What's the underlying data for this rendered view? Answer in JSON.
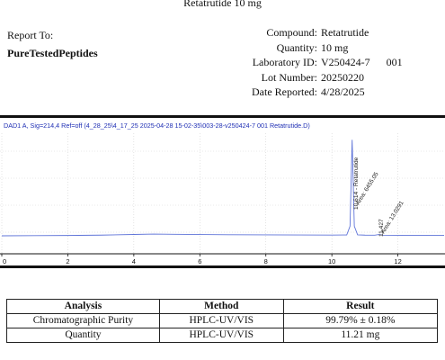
{
  "document": {
    "title": "Retatrutide 10 mg"
  },
  "report_to": {
    "label": "Report To:",
    "company": "PureTestedPeptides"
  },
  "info": [
    {
      "label": "Compound:",
      "value": "Retatrutide",
      "extra": ""
    },
    {
      "label": "Quantity:",
      "value": "10 mg",
      "extra": ""
    },
    {
      "label": "Laboratory ID:",
      "value": "V250424-7",
      "extra": "001"
    },
    {
      "label": "Lot Number:",
      "value": "20250220",
      "extra": ""
    },
    {
      "label": "Date Reported:",
      "value": "4/28/2025",
      "extra": ""
    }
  ],
  "chromatogram": {
    "header": "DAD1 A, Sig=214,4 Ref=off (4_28_25\\4_17_25 2025-04-28 15-02-35\\003-28-v250424-7 001 Retatrutide.D)",
    "peak_labels": [
      {
        "text": "10.614 - Retatrutide"
      },
      {
        "text": "Area: 6455.05"
      },
      {
        "text": "11.427"
      },
      {
        "text": "Area: 13.0291"
      }
    ],
    "x_ticks": [
      "0",
      "2",
      "4",
      "6",
      "8",
      "10",
      "12"
    ],
    "colors": {
      "header": "#1f2fb4",
      "trace": "#5f74d8",
      "axis": "#111111"
    }
  },
  "chart_data": {
    "type": "line",
    "xlim": [
      0,
      13.4
    ],
    "x_ticks": [
      0,
      2,
      4,
      6,
      8,
      10,
      12
    ],
    "series": [
      {
        "x": [
          0.0,
          1.0,
          2.0,
          3.0,
          4.0,
          4.6,
          5.2,
          6.0,
          7.0,
          8.0,
          9.0,
          10.0,
          10.45,
          10.55,
          10.614,
          10.68,
          10.78,
          11.0,
          11.3,
          11.427,
          11.55,
          12.0,
          13.0,
          13.4
        ],
        "y": [
          0.0,
          0.15,
          0.35,
          0.7,
          1.4,
          1.8,
          1.6,
          1.3,
          1.1,
          1.0,
          0.9,
          0.8,
          0.9,
          10,
          100,
          10,
          1.0,
          0.7,
          0.6,
          1.3,
          0.6,
          0.5,
          0.4,
          0.4
        ]
      }
    ],
    "ylim": [
      -5,
      105
    ]
  },
  "results_table": {
    "headers": [
      "Analysis",
      "Method",
      "Result"
    ],
    "rows": [
      [
        "Chromatographic Purity",
        "HPLC-UV/VIS",
        "99.79% ± 0.18%"
      ],
      [
        "Quantity",
        "HPLC-UV/VIS",
        "11.21 mg"
      ]
    ]
  }
}
